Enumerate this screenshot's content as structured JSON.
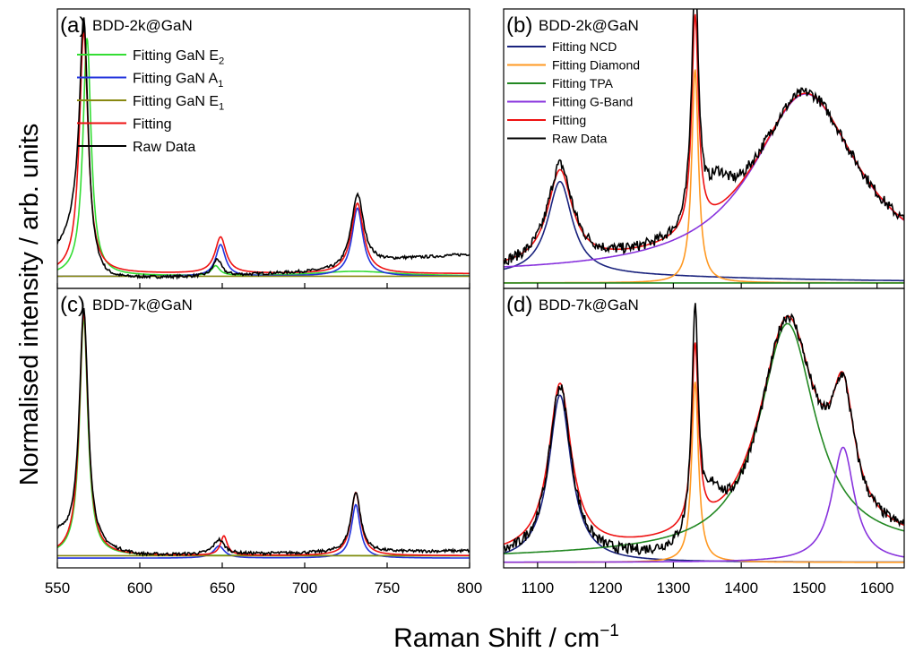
{
  "figure": {
    "ylabel": "Normalised intensity / arb. units",
    "xlabel": "Raman Shift / cm",
    "xlabel_sup": "−1"
  },
  "colors": {
    "e2": "#33dd33",
    "a1": "#2233dd",
    "e1": "#888811",
    "ncd": "#1a237e",
    "diamond": "#ff9922",
    "tpa": "#228822",
    "gband": "#8833dd",
    "fit": "#ee1111",
    "raw": "#000000"
  },
  "chart_data": [
    {
      "id": "a",
      "type": "line",
      "panel_label": "(a)",
      "title": "BDD-2k@GaN",
      "xlim": [
        550,
        800
      ],
      "ylim": [
        -0.05,
        1.1
      ],
      "legend": "top-left",
      "series": [
        {
          "name": "Fitting GaN E",
          "sub": "2",
          "color": "e2",
          "peaks": [
            [
              568,
              0.98,
              3.0
            ],
            [
              646,
              0.04,
              3
            ],
            [
              731,
              0.02,
              30
            ]
          ],
          "base": 0.0,
          "dash": false
        },
        {
          "name": "Fitting GaN A",
          "sub": "1",
          "color": "a1",
          "peaks": [
            [
              649,
              0.13,
              3.5
            ],
            [
              732,
              0.28,
              4
            ]
          ],
          "base": 0.0
        },
        {
          "name": "Fitting GaN E",
          "sub": "1",
          "color": "e1",
          "peaks": [],
          "base": 0.0
        },
        {
          "name": "Fitting",
          "color": "fit",
          "peaks": [
            [
              566,
              1.0,
              3.2
            ],
            [
              649,
              0.15,
              4
            ],
            [
              732,
              0.29,
              4.5
            ]
          ],
          "base": 0.01
        },
        {
          "name": "Raw Data",
          "color": "raw",
          "raw": true,
          "peaks": [
            [
              566,
              0.99,
              3.2
            ],
            [
              647,
              0.07,
              3
            ],
            [
              732,
              0.3,
              4.5
            ]
          ],
          "base_points": [
            [
              550,
              0.1
            ],
            [
              560,
              0.15
            ],
            [
              572,
              0.0
            ],
            [
              580,
              -0.02
            ],
            [
              600,
              -0.01
            ],
            [
              650,
              0.0
            ],
            [
              680,
              0.01
            ],
            [
              720,
              0.02
            ],
            [
              740,
              0.05
            ],
            [
              760,
              0.07
            ],
            [
              780,
              0.08
            ],
            [
              800,
              0.09
            ]
          ],
          "noise": 0.006
        }
      ]
    },
    {
      "id": "b",
      "type": "line",
      "panel_label": "(b)",
      "title": "BDD-2k@GaN",
      "xlim": [
        1050,
        1640
      ],
      "ylim": [
        -0.02,
        1.0
      ],
      "legend": "top-left",
      "series": [
        {
          "name": "Fitting NCD",
          "color": "ncd",
          "peaks": [
            [
              1133,
              0.34,
              22
            ]
          ],
          "base_points": [
            [
              1050,
              0.0
            ],
            [
              1640,
              0.0
            ]
          ],
          "tail": [
            [
              1133,
              0.03,
              300
            ]
          ]
        },
        {
          "name": "Fitting Diamond",
          "color": "diamond",
          "peaks": [
            [
              1332,
              0.78,
              6
            ]
          ],
          "base": 0.0
        },
        {
          "name": "Fitting TPA",
          "color": "tpa",
          "peaks": [],
          "base": 0.0
        },
        {
          "name": "Fitting G-Band",
          "color": "gband",
          "peaks": [
            [
              1495,
              0.66,
              95
            ]
          ],
          "base_points": [
            [
              1050,
              0.03
            ],
            [
              1640,
              0.03
            ]
          ]
        },
        {
          "name": "Fitting",
          "color": "fit",
          "peaks": [
            [
              1133,
              0.34,
              22
            ],
            [
              1332,
              0.78,
              6
            ],
            [
              1495,
              0.66,
              95
            ]
          ],
          "base_points": [
            [
              1050,
              0.03
            ],
            [
              1640,
              0.03
            ]
          ]
        },
        {
          "name": "Raw Data",
          "color": "raw",
          "raw": true,
          "peaks": [
            [
              1133,
              0.36,
              22
            ],
            [
              1332,
              0.92,
              6
            ],
            [
              1365,
              0.12,
              20
            ],
            [
              1495,
              0.66,
              95
            ]
          ],
          "base_points": [
            [
              1050,
              0.03
            ],
            [
              1640,
              0.03
            ]
          ],
          "noise": 0.02
        }
      ]
    },
    {
      "id": "c",
      "type": "line",
      "panel_label": "(c)",
      "title": "BDD-7k@GaN",
      "xlim": [
        550,
        800
      ],
      "ylim": [
        -0.05,
        1.1
      ],
      "legend": "none",
      "series": [
        {
          "name": "Fitting GaN E",
          "sub": "2",
          "color": "e2",
          "peaks": [
            [
              566,
              0.98,
              3.0
            ]
          ],
          "base": 0.0
        },
        {
          "name": "Fitting GaN A",
          "sub": "1",
          "color": "a1",
          "peaks": [
            [
              648,
              0.05,
              4
            ],
            [
              731,
              0.22,
              3.2
            ]
          ],
          "base": -0.01
        },
        {
          "name": "Fitting GaN E",
          "sub": "1",
          "color": "e1",
          "peaks": [],
          "base": 0.0
        },
        {
          "name": "Fitting",
          "color": "fit",
          "peaks": [
            [
              566,
              1.0,
              3.2
            ],
            [
              651,
              0.08,
              2.5
            ],
            [
              731,
              0.26,
              3.5
            ]
          ],
          "base": 0.0
        },
        {
          "name": "Raw Data",
          "color": "raw",
          "raw": true,
          "peaks": [
            [
              566,
              0.98,
              3.2
            ],
            [
              648,
              0.06,
              4
            ],
            [
              731,
              0.25,
              3.5
            ]
          ],
          "base_points": [
            [
              550,
              0.08
            ],
            [
              572,
              0.02
            ],
            [
              600,
              0.0
            ],
            [
              700,
              0.01
            ],
            [
              800,
              0.02
            ]
          ],
          "noise": 0.006
        }
      ]
    },
    {
      "id": "d",
      "type": "line",
      "panel_label": "(d)",
      "title": "BDD-7k@GaN",
      "xlim": [
        1050,
        1640
      ],
      "ylim": [
        -0.02,
        1.0
      ],
      "legend": "none",
      "xticks": [
        1100,
        1200,
        1300,
        1400,
        1500,
        1600
      ],
      "series": [
        {
          "name": "Fitting NCD",
          "color": "ncd",
          "peaks": [
            [
              1133,
              0.61,
              20
            ]
          ],
          "base": 0.0
        },
        {
          "name": "Fitting Diamond",
          "color": "diamond",
          "peaks": [
            [
              1332,
              0.66,
              6
            ]
          ],
          "base": 0.0
        },
        {
          "name": "Fitting TPA",
          "color": "tpa",
          "peaks": [
            [
              1468,
              0.83,
              50
            ]
          ],
          "base_points": [
            [
              1050,
              0.02
            ],
            [
              1640,
              0.05
            ]
          ]
        },
        {
          "name": "Fitting G-Band",
          "color": "gband",
          "peaks": [
            [
              1550,
              0.42,
              20
            ]
          ],
          "base": 0.0
        },
        {
          "name": "Fitting",
          "color": "fit",
          "peaks": [
            [
              1133,
              0.61,
              20
            ],
            [
              1332,
              0.66,
              6
            ],
            [
              1468,
              0.83,
              50
            ],
            [
              1550,
              0.42,
              20
            ]
          ],
          "base_points": [
            [
              1050,
              0.02
            ],
            [
              1640,
              0.05
            ]
          ]
        },
        {
          "name": "Raw Data",
          "color": "raw",
          "raw": true,
          "peaks": [
            [
              1133,
              0.63,
              20
            ],
            [
              1332,
              0.82,
              6
            ],
            [
              1360,
              0.12,
              15
            ],
            [
              1468,
              0.86,
              50
            ],
            [
              1550,
              0.42,
              20
            ]
          ],
          "base_points": [
            [
              1050,
              0.0
            ],
            [
              1250,
              -0.02
            ],
            [
              1300,
              -0.03
            ],
            [
              1640,
              0.05
            ]
          ],
          "noise": 0.02
        }
      ]
    }
  ],
  "xaxes": {
    "left": {
      "ticks": [
        550,
        600,
        650,
        700,
        750,
        800
      ]
    },
    "right": {
      "ticks": [
        1100,
        1200,
        1300,
        1400,
        1500,
        1600
      ]
    }
  }
}
